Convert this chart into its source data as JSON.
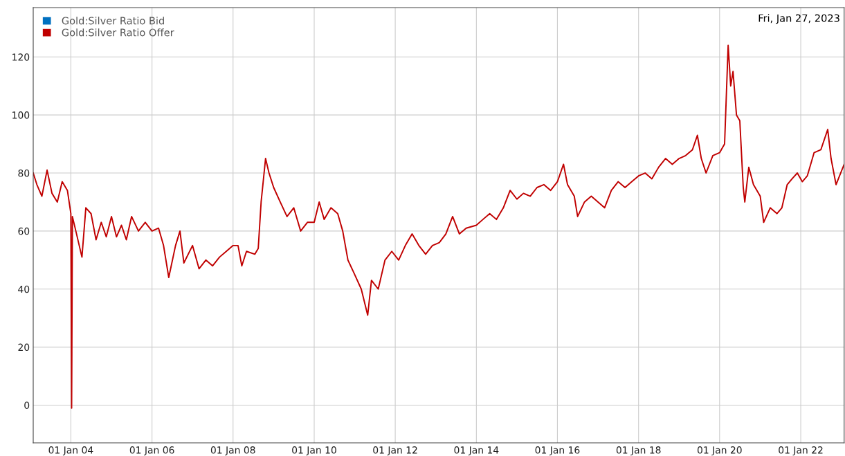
{
  "chart_data": {
    "type": "line",
    "x": [
      "2003-01-27",
      "2003-03-01",
      "2003-04-15",
      "2003-06-01",
      "2003-07-15",
      "2003-09-01",
      "2003-10-15",
      "2003-12-01",
      "2004-01-01",
      "2004-01-08",
      "2004-01-15",
      "2004-02-15",
      "2004-04-10",
      "2004-05-15",
      "2004-07-01",
      "2004-08-15",
      "2004-10-01",
      "2004-11-15",
      "2005-01-01",
      "2005-02-15",
      "2005-04-01",
      "2005-05-15",
      "2005-07-01",
      "2005-09-01",
      "2005-11-01",
      "2006-01-01",
      "2006-03-01",
      "2006-04-15",
      "2006-06-01",
      "2006-08-01",
      "2006-09-10",
      "2006-10-15",
      "2007-01-01",
      "2007-03-01",
      "2007-05-01",
      "2007-07-01",
      "2007-09-01",
      "2007-11-01",
      "2008-01-01",
      "2008-02-15",
      "2008-03-20",
      "2008-05-01",
      "2008-07-15",
      "2008-08-15",
      "2008-09-10",
      "2008-10-20",
      "2008-11-20",
      "2009-01-01",
      "2009-03-01",
      "2009-05-01",
      "2009-07-01",
      "2009-09-01",
      "2009-11-01",
      "2010-01-01",
      "2010-02-15",
      "2010-04-01",
      "2010-06-01",
      "2010-08-01",
      "2010-09-15",
      "2010-11-01",
      "2011-01-01",
      "2011-03-01",
      "2011-04-28",
      "2011-06-01",
      "2011-08-01",
      "2011-10-01",
      "2011-12-01",
      "2012-02-01",
      "2012-04-01",
      "2012-06-01",
      "2012-08-01",
      "2012-10-01",
      "2012-12-01",
      "2013-02-01",
      "2013-04-01",
      "2013-06-01",
      "2013-08-01",
      "2013-10-01",
      "2014-01-01",
      "2014-03-01",
      "2014-05-01",
      "2014-07-01",
      "2014-09-01",
      "2014-11-01",
      "2015-01-01",
      "2015-03-01",
      "2015-05-01",
      "2015-07-01",
      "2015-09-01",
      "2015-11-01",
      "2016-01-01",
      "2016-02-25",
      "2016-04-01",
      "2016-06-01",
      "2016-07-01",
      "2016-09-01",
      "2016-11-01",
      "2017-01-01",
      "2017-03-01",
      "2017-05-01",
      "2017-07-01",
      "2017-09-01",
      "2017-11-01",
      "2018-01-01",
      "2018-03-01",
      "2018-05-01",
      "2018-07-01",
      "2018-09-01",
      "2018-11-01",
      "2019-01-01",
      "2019-03-01",
      "2019-05-01",
      "2019-06-15",
      "2019-07-20",
      "2019-09-01",
      "2019-11-01",
      "2020-01-01",
      "2020-02-15",
      "2020-03-18",
      "2020-04-10",
      "2020-05-01",
      "2020-06-01",
      "2020-07-01",
      "2020-08-01",
      "2020-08-15",
      "2020-09-20",
      "2020-11-01",
      "2021-01-01",
      "2021-02-01",
      "2021-04-01",
      "2021-06-01",
      "2021-07-15",
      "2021-09-01",
      "2021-10-15",
      "2021-12-01",
      "2022-01-15",
      "2022-03-01",
      "2022-05-01",
      "2022-07-01",
      "2022-09-01",
      "2022-10-01",
      "2022-11-15",
      "2023-01-27"
    ],
    "series": [
      {
        "name": "Gold:Silver Ratio Bid",
        "color": "#0070c0",
        "values": [
          null,
          null,
          null,
          null,
          null,
          null,
          null,
          null,
          null,
          null,
          null,
          null,
          null,
          null,
          null,
          null,
          null,
          null,
          null,
          null,
          null,
          null,
          null,
          null,
          null,
          null,
          null,
          null,
          null,
          null,
          null,
          null,
          null,
          null,
          null,
          null,
          null,
          null,
          null,
          null,
          null,
          null,
          null,
          null,
          null,
          null,
          null,
          null,
          null,
          null,
          null,
          null,
          null,
          null,
          null,
          null,
          null,
          null,
          null,
          null,
          null,
          null,
          null,
          null,
          null,
          null,
          null,
          null,
          null,
          null,
          null,
          null,
          null,
          null,
          null,
          null,
          null,
          null,
          null,
          null,
          null,
          null,
          null,
          null,
          null,
          null,
          null,
          null,
          null,
          null,
          null,
          null,
          null,
          null,
          null,
          null,
          null,
          null,
          null,
          null,
          null,
          null,
          null,
          null,
          null,
          null,
          null,
          null,
          null,
          null,
          null,
          null,
          null,
          null,
          null,
          null,
          null,
          null,
          null,
          null,
          null,
          null,
          null,
          null,
          null,
          null,
          null,
          null,
          null,
          null,
          null,
          null,
          null,
          null,
          null,
          null,
          null,
          null,
          null,
          null,
          null,
          null,
          null
        ]
      },
      {
        "name": "Gold:Silver Ratio Offer",
        "color": "#c00000",
        "values": [
          80,
          76,
          72,
          81,
          73,
          70,
          77,
          74,
          66,
          -1,
          65,
          60,
          51,
          68,
          66,
          57,
          63,
          58,
          65,
          58,
          62,
          57,
          65,
          60,
          63,
          60,
          61,
          55,
          44,
          55,
          60,
          49,
          55,
          47,
          50,
          48,
          51,
          53,
          55,
          55,
          48,
          53,
          52,
          54,
          70,
          85,
          80,
          75,
          70,
          65,
          68,
          60,
          63,
          63,
          70,
          64,
          68,
          66,
          60,
          50,
          45,
          40,
          31,
          43,
          40,
          50,
          53,
          50,
          55,
          59,
          55,
          52,
          55,
          56,
          59,
          65,
          59,
          61,
          62,
          64,
          66,
          64,
          68,
          74,
          71,
          73,
          72,
          75,
          76,
          74,
          77,
          83,
          76,
          72,
          65,
          70,
          72,
          70,
          68,
          74,
          77,
          75,
          77,
          79,
          80,
          78,
          82,
          85,
          83,
          85,
          86,
          88,
          93,
          85,
          80,
          86,
          87,
          90,
          124,
          110,
          115,
          100,
          98,
          75,
          70,
          82,
          76,
          72,
          63,
          68,
          66,
          68,
          76,
          78,
          80,
          77,
          79,
          87,
          88,
          95,
          85,
          76,
          83
        ]
      }
    ],
    "xlim": [
      "2003-01-27",
      "2023-01-27"
    ],
    "xticks": [
      {
        "value": "2004-01-01",
        "label": "01 Jan 04"
      },
      {
        "value": "2006-01-01",
        "label": "01 Jan 06"
      },
      {
        "value": "2008-01-01",
        "label": "01 Jan 08"
      },
      {
        "value": "2010-01-01",
        "label": "01 Jan 10"
      },
      {
        "value": "2012-01-01",
        "label": "01 Jan 12"
      },
      {
        "value": "2014-01-01",
        "label": "01 Jan 14"
      },
      {
        "value": "2016-01-01",
        "label": "01 Jan 16"
      },
      {
        "value": "2018-01-01",
        "label": "01 Jan 18"
      },
      {
        "value": "2020-01-01",
        "label": "01 Jan 20"
      },
      {
        "value": "2022-01-01",
        "label": "01 Jan 22"
      }
    ],
    "ylim": [
      -13,
      137
    ],
    "yticks": [
      0,
      20,
      40,
      60,
      80,
      100,
      120
    ],
    "annotations": [
      "Fri, Jan 27, 2023"
    ],
    "grid": true,
    "legend": "top left",
    "marker": "none",
    "line_style": "solid"
  }
}
